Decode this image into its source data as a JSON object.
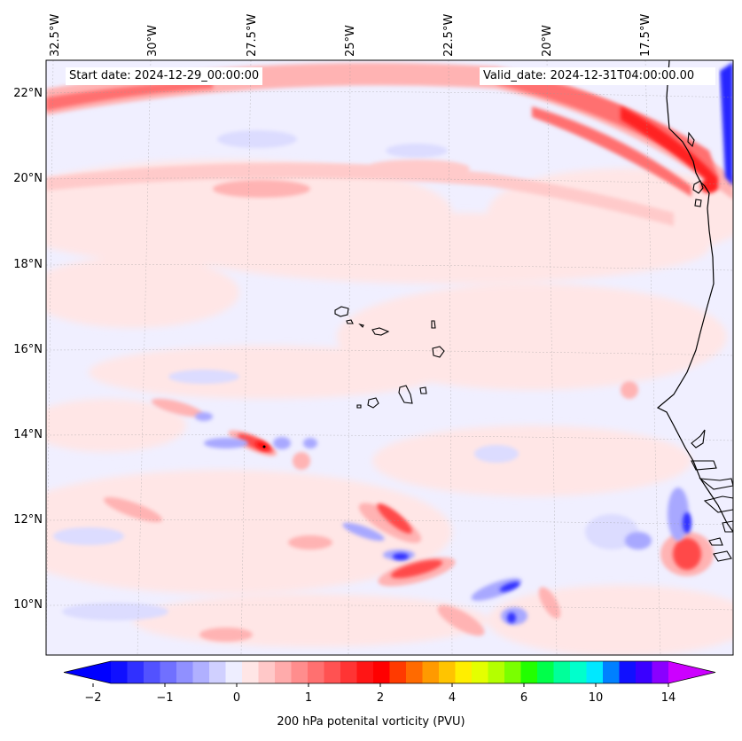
{
  "map": {
    "start_label": "Start date: 2024-12-29_00:00:00",
    "valid_label": "Valid_date: 2024-12-31T04:00:00.00",
    "lon_labels": [
      "32.5°W",
      "30°W",
      "27.5°W",
      "25°W",
      "22.5°W",
      "20°W",
      "17.5°W"
    ],
    "lat_labels": [
      "22°N",
      "20°N",
      "18°N",
      "16°N",
      "14°N",
      "12°N",
      "10°N"
    ],
    "variable": "200 hPa potenital vorticity (PVU)",
    "field_colors": {
      "neutral_pos": "#ffe6e6",
      "neutral_neg": "#eeeeff",
      "weak_pos": "#ffb3b3",
      "mid_pos": "#ff8080",
      "strong_pos": "#ff2a2a",
      "weak_neg": "#d0d0ff",
      "mid_neg": "#a8a8ff",
      "strong_neg": "#3030ff"
    },
    "coastline_color": "#000000"
  },
  "colorbar": {
    "tick_labels": [
      "−2",
      "−1",
      "0",
      "1",
      "2",
      "4",
      "6",
      "10",
      "14"
    ],
    "colors": [
      "#1010ff",
      "#3030ff",
      "#5252ff",
      "#7070ff",
      "#9090ff",
      "#b0b0ff",
      "#d0d0ff",
      "#eeeeff",
      "#ffe6e6",
      "#ffc8c8",
      "#ffabab",
      "#ff8d8d",
      "#ff7070",
      "#ff5252",
      "#ff3434",
      "#ff1515",
      "#ff0000",
      "#ff3a00",
      "#ff6a00",
      "#ff9a00",
      "#ffc400",
      "#ffee00",
      "#e4ff00",
      "#b4ff00",
      "#7aff00",
      "#22ff00",
      "#00ff4a",
      "#00ff9a",
      "#00ffcc",
      "#00e8ff",
      "#0080ff",
      "#1010ff",
      "#3a00ff",
      "#8a00ff"
    ],
    "end_low": "#0000ff",
    "end_high": "#cc00ff"
  }
}
